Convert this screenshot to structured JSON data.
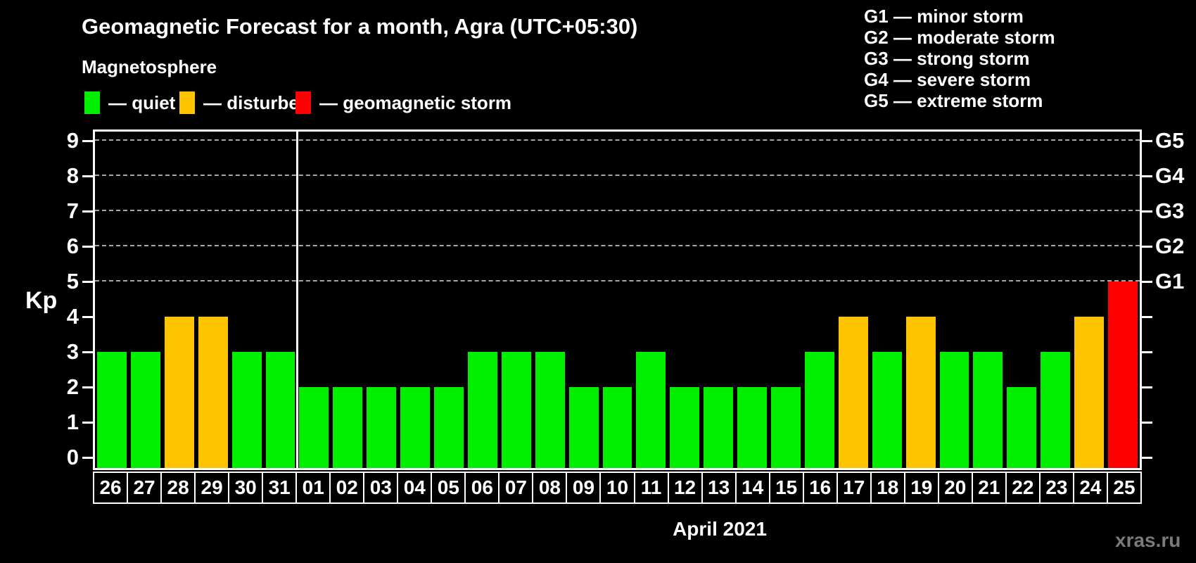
{
  "title": "Geomagnetic Forecast for a month, Agra (UTC+05:30)",
  "subtitle": "Magnetosphere",
  "kp_axis_label": "Kp",
  "month_label": "April 2021",
  "watermark": "xras.ru",
  "legend": {
    "items": [
      {
        "name": "quiet",
        "label": "— quiet",
        "color": "#00F000"
      },
      {
        "name": "disturbed",
        "label": "— disturbed",
        "color": "#FFC400"
      },
      {
        "name": "storm",
        "label": "— geomagnetic storm",
        "color": "#FF0000"
      }
    ]
  },
  "g_scale_legend": [
    "G1 — minor storm",
    "G2 — moderate storm",
    "G3 — strong storm",
    "G4 — severe storm",
    "G5 — extreme storm"
  ],
  "chart_data": {
    "type": "bar",
    "title": "Geomagnetic Forecast for a month, Agra (UTC+05:30)",
    "xlabel": "April 2021",
    "ylabel": "Kp",
    "ylim": [
      0,
      9
    ],
    "yticks": [
      0,
      1,
      2,
      3,
      4,
      5,
      6,
      7,
      8,
      9
    ],
    "grid_levels": [
      5,
      6,
      7,
      8,
      9
    ],
    "grid_style": "dashed horizontal lines at Kp 5 through 9",
    "legend_position": "top",
    "right_axis_labels": [
      {
        "label": "G1",
        "kp": 5
      },
      {
        "label": "G2",
        "kp": 6
      },
      {
        "label": "G3",
        "kp": 7
      },
      {
        "label": "G4",
        "kp": 8
      },
      {
        "label": "G5",
        "kp": 9
      }
    ],
    "categories": [
      "26",
      "27",
      "28",
      "29",
      "30",
      "31",
      "01",
      "02",
      "03",
      "04",
      "05",
      "06",
      "07",
      "08",
      "09",
      "10",
      "11",
      "12",
      "13",
      "14",
      "15",
      "16",
      "17",
      "18",
      "19",
      "20",
      "21",
      "22",
      "23",
      "24",
      "25"
    ],
    "values": [
      3,
      3,
      4,
      4,
      3,
      3,
      2,
      2,
      2,
      2,
      2,
      3,
      3,
      3,
      2,
      2,
      3,
      2,
      2,
      2,
      2,
      3,
      4,
      3,
      4,
      3,
      3,
      2,
      3,
      4,
      5
    ],
    "status": [
      "quiet",
      "quiet",
      "disturbed",
      "disturbed",
      "quiet",
      "quiet",
      "quiet",
      "quiet",
      "quiet",
      "quiet",
      "quiet",
      "quiet",
      "quiet",
      "quiet",
      "quiet",
      "quiet",
      "quiet",
      "quiet",
      "quiet",
      "quiet",
      "quiet",
      "quiet",
      "disturbed",
      "quiet",
      "disturbed",
      "quiet",
      "quiet",
      "quiet",
      "quiet",
      "disturbed",
      "storm"
    ],
    "colors": {
      "quiet": "#00F000",
      "disturbed": "#FFC400",
      "storm": "#FF0000"
    },
    "separator_after_category": "31",
    "separator_after_index": 5
  }
}
